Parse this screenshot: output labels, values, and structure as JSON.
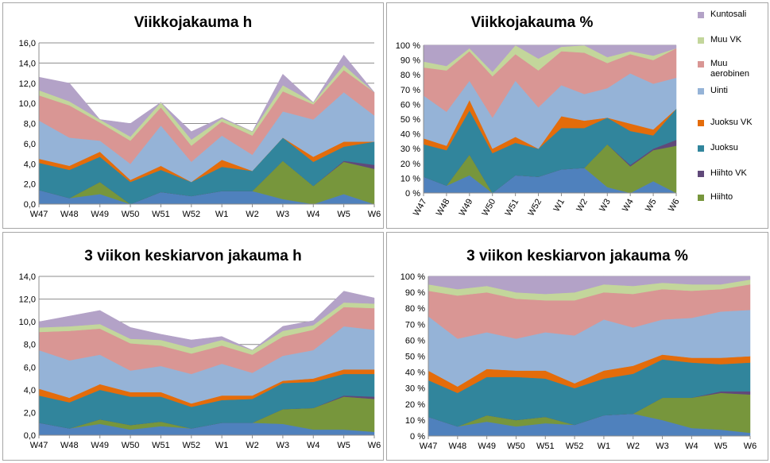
{
  "series_colors": {
    "Hiihto": "#77963c",
    "Hiihto VK": "#60497a",
    "Juoksu": "#31859c",
    "Juoksu VK": "#e46c0a",
    "Uinti": "#95b3d7",
    "Muu aerobinen": "#d99694",
    "Muu VK": "#c3d69b",
    "Kuntosali": "#b3a2c7",
    "Base": "#4f81bd"
  },
  "legend": [
    {
      "name": "Kuntosali",
      "label": "Kuntosali",
      "color": "#b3a2c7"
    },
    {
      "name": "Muu VK",
      "label": "Muu VK",
      "color": "#c3d69b"
    },
    {
      "name": "Muu aerobinen",
      "label": "Muu aerobinen",
      "color": "#d99694"
    },
    {
      "name": "Uinti",
      "label": "Uinti",
      "color": "#95b3d7"
    },
    {
      "name": "Juoksu VK",
      "label": "Juoksu VK",
      "color": "#e46c0a"
    },
    {
      "name": "Juoksu",
      "label": "Juoksu",
      "color": "#31859c"
    },
    {
      "name": "Hiihto VK",
      "label": "Hiihto VK",
      "color": "#60497a"
    },
    {
      "name": "Hiihto",
      "label": "Hiihto",
      "color": "#77963c"
    }
  ],
  "chart_data": [
    {
      "type": "area",
      "title": "Viikkojakauma h",
      "categories": [
        "W47",
        "W48",
        "W49",
        "W50",
        "W51",
        "W52",
        "W1",
        "W2",
        "W3",
        "W4",
        "W5",
        "W6"
      ],
      "ylim": [
        0,
        16
      ],
      "yticks": [
        "0,0",
        "2,0",
        "4,0",
        "6,0",
        "8,0",
        "10,0",
        "12,0",
        "14,0",
        "16,0"
      ],
      "grid": true,
      "series": [
        {
          "key": "Base",
          "values": [
            1.4,
            0.6,
            1.0,
            0.0,
            1.2,
            0.8,
            1.3,
            1.3,
            0.5,
            0.0,
            1.0,
            0.0
          ]
        },
        {
          "key": "Hiihto",
          "values": [
            0.0,
            0.0,
            1.2,
            0.0,
            0.0,
            0.0,
            0.0,
            0.0,
            3.8,
            1.8,
            3.2,
            3.5
          ]
        },
        {
          "key": "Hiihto VK",
          "values": [
            0.0,
            0.0,
            0.0,
            0.0,
            0.0,
            0.0,
            0.0,
            0.0,
            0.0,
            0.0,
            0.1,
            0.4
          ]
        },
        {
          "key": "Juoksu",
          "values": [
            2.7,
            2.8,
            2.5,
            2.2,
            2.2,
            1.4,
            2.4,
            2.0,
            2.3,
            2.4,
            1.4,
            2.3
          ]
        },
        {
          "key": "Juoksu VK",
          "values": [
            0.4,
            0.4,
            0.5,
            0.2,
            0.4,
            0.0,
            0.7,
            0.0,
            0.0,
            0.5,
            0.5,
            0.0
          ]
        },
        {
          "key": "Uinti",
          "values": [
            3.8,
            2.8,
            1.1,
            1.6,
            4.0,
            2.0,
            2.4,
            1.6,
            2.6,
            3.7,
            4.9,
            2.6
          ]
        },
        {
          "key": "Muu aerobinen",
          "values": [
            2.5,
            3.2,
            1.8,
            2.3,
            1.8,
            1.6,
            1.4,
            1.9,
            2.0,
            1.5,
            2.2,
            2.3
          ]
        },
        {
          "key": "Muu VK",
          "values": [
            0.5,
            0.4,
            0.3,
            0.4,
            0.5,
            0.6,
            0.3,
            0.4,
            0.6,
            0.2,
            0.5,
            0.0
          ]
        },
        {
          "key": "Kuntosali",
          "values": [
            1.3,
            1.8,
            0.0,
            1.3,
            0.0,
            0.8,
            0.1,
            0.0,
            1.1,
            0.0,
            1.0,
            0.0
          ]
        }
      ]
    },
    {
      "type": "area",
      "title": "Viikkojakauma %",
      "categories": [
        "W47",
        "W48",
        "W49",
        "W50",
        "W51",
        "W52",
        "W1",
        "W2",
        "W3",
        "W4",
        "W5",
        "W6"
      ],
      "ylim": [
        0,
        100
      ],
      "yticks": [
        "0 %",
        "10 %",
        "20 %",
        "30 %",
        "40 %",
        "50 %",
        "60 %",
        "70 %",
        "80 %",
        "90 %",
        "100 %"
      ],
      "grid": true,
      "series": [
        {
          "key": "Base",
          "values": [
            11,
            5,
            12,
            0,
            12,
            11,
            16,
            17,
            4,
            0,
            8,
            0
          ]
        },
        {
          "key": "Hiihto",
          "values": [
            0,
            0,
            14,
            0,
            0,
            0,
            0,
            0,
            29,
            18,
            21,
            32
          ]
        },
        {
          "key": "Hiihto VK",
          "values": [
            0,
            0,
            0,
            0,
            0,
            0,
            0,
            0,
            0,
            1,
            1,
            4
          ]
        },
        {
          "key": "Juoksu",
          "values": [
            22,
            24,
            30,
            27,
            22,
            19,
            28,
            27,
            18,
            23,
            9,
            21
          ]
        },
        {
          "key": "Juoksu VK",
          "values": [
            4,
            3,
            7,
            3,
            4,
            0,
            8,
            5,
            0,
            5,
            4,
            0
          ]
        },
        {
          "key": "Uinti",
          "values": [
            29,
            23,
            13,
            21,
            38,
            28,
            21,
            18,
            20,
            34,
            31,
            21
          ]
        },
        {
          "key": "Muu aerobinen",
          "values": [
            19,
            28,
            20,
            28,
            18,
            25,
            23,
            28,
            17,
            13,
            16,
            20
          ]
        },
        {
          "key": "Muu VK",
          "values": [
            4,
            3,
            2,
            3,
            6,
            8,
            3,
            5,
            4,
            2,
            3,
            0
          ]
        },
        {
          "key": "Kuntosali",
          "values": [
            11,
            14,
            2,
            18,
            0,
            9,
            1,
            0,
            8,
            4,
            7,
            2
          ]
        }
      ]
    },
    {
      "type": "area",
      "title": "3 viikon keskiarvon jakauma h",
      "categories": [
        "W47",
        "W48",
        "W49",
        "W50",
        "W51",
        "W52",
        "W1",
        "W2",
        "W3",
        "W4",
        "W5",
        "W6"
      ],
      "ylim": [
        0,
        14
      ],
      "yticks": [
        "0,0",
        "2,0",
        "4,0",
        "6,0",
        "8,0",
        "10,0",
        "12,0",
        "14,0"
      ],
      "grid": true,
      "series": [
        {
          "key": "Base",
          "values": [
            1.1,
            0.6,
            1.0,
            0.5,
            0.8,
            0.6,
            1.1,
            1.1,
            1.0,
            0.5,
            0.5,
            0.3
          ]
        },
        {
          "key": "Hiihto",
          "values": [
            0.0,
            0.0,
            0.4,
            0.4,
            0.4,
            0.0,
            0.0,
            0.0,
            1.3,
            1.9,
            2.9,
            2.9
          ]
        },
        {
          "key": "Hiihto VK",
          "values": [
            0.0,
            0.0,
            0.0,
            0.0,
            0.0,
            0.0,
            0.0,
            0.0,
            0.0,
            0.0,
            0.1,
            0.2
          ]
        },
        {
          "key": "Juoksu",
          "values": [
            2.4,
            2.3,
            2.6,
            2.5,
            2.2,
            1.9,
            2.0,
            2.1,
            2.3,
            2.3,
            1.9,
            2.0
          ]
        },
        {
          "key": "Juoksu VK",
          "values": [
            0.6,
            0.4,
            0.5,
            0.4,
            0.4,
            0.3,
            0.4,
            0.3,
            0.2,
            0.3,
            0.4,
            0.4
          ]
        },
        {
          "key": "Uinti",
          "values": [
            3.4,
            3.3,
            2.6,
            1.9,
            2.3,
            2.6,
            2.8,
            2.0,
            2.2,
            2.5,
            3.8,
            3.5
          ]
        },
        {
          "key": "Muu aerobinen",
          "values": [
            1.6,
            2.6,
            2.3,
            2.4,
            1.8,
            1.8,
            1.6,
            1.6,
            1.7,
            1.8,
            1.7,
            1.9
          ]
        },
        {
          "key": "Muu VK",
          "values": [
            0.4,
            0.4,
            0.4,
            0.4,
            0.5,
            0.5,
            0.5,
            0.4,
            0.5,
            0.4,
            0.4,
            0.4
          ]
        },
        {
          "key": "Kuntosali",
          "values": [
            0.5,
            0.9,
            1.2,
            1.0,
            0.5,
            0.7,
            0.3,
            0.0,
            0.4,
            0.4,
            1.0,
            0.5
          ]
        }
      ]
    },
    {
      "type": "area",
      "title": "3 viikon keskiarvon jakauma %",
      "categories": [
        "W47",
        "W48",
        "W49",
        "W50",
        "W51",
        "W52",
        "W1",
        "W2",
        "W3",
        "W4",
        "W5",
        "W6"
      ],
      "ylim": [
        0,
        100
      ],
      "yticks": [
        "0 %",
        "10 %",
        "20 %",
        "30 %",
        "40 %",
        "50 %",
        "60 %",
        "70 %",
        "80 %",
        "90 %",
        "100 %"
      ],
      "grid": true,
      "series": [
        {
          "key": "Base",
          "values": [
            12,
            6,
            9,
            6,
            8,
            7,
            13,
            14,
            10,
            5,
            4,
            2
          ]
        },
        {
          "key": "Hiihto",
          "values": [
            0,
            0,
            4,
            4,
            4,
            0,
            0,
            0,
            14,
            19,
            23,
            24
          ]
        },
        {
          "key": "Hiihto VK",
          "values": [
            0,
            0,
            0,
            0,
            0,
            0,
            0,
            0,
            0,
            0,
            1,
            2
          ]
        },
        {
          "key": "Juoksu",
          "values": [
            23,
            21,
            24,
            27,
            24,
            23,
            23,
            25,
            24,
            22,
            17,
            18
          ]
        },
        {
          "key": "Juoksu VK",
          "values": [
            6,
            4,
            5,
            4,
            5,
            3,
            5,
            5,
            3,
            3,
            4,
            4
          ]
        },
        {
          "key": "Uinti",
          "values": [
            34,
            30,
            23,
            20,
            24,
            30,
            32,
            24,
            22,
            25,
            29,
            29
          ]
        },
        {
          "key": "Muu aerobinen",
          "values": [
            16,
            27,
            25,
            25,
            20,
            22,
            17,
            21,
            19,
            17,
            14,
            16
          ]
        },
        {
          "key": "Muu VK",
          "values": [
            4,
            4,
            4,
            4,
            4,
            5,
            5,
            5,
            4,
            4,
            3,
            3
          ]
        },
        {
          "key": "Kuntosali",
          "values": [
            5,
            8,
            6,
            10,
            11,
            10,
            5,
            6,
            4,
            5,
            5,
            2
          ]
        }
      ]
    }
  ]
}
